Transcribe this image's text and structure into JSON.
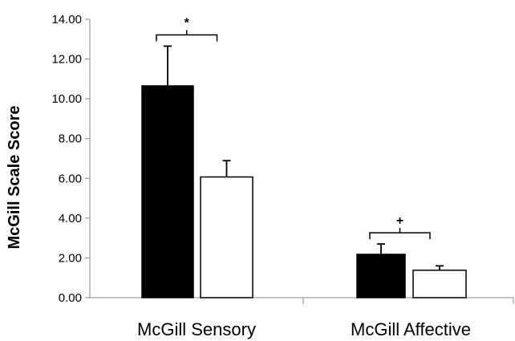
{
  "chart_data": {
    "type": "bar",
    "title": "",
    "ylabel": "McGill Scale Score",
    "xlabel": "",
    "ylim": [
      0,
      14
    ],
    "ytick_step": 2,
    "ytick_labels": [
      "0.00",
      "2.00",
      "4.00",
      "6.00",
      "8.00",
      "10.00",
      "12.00",
      "14.00"
    ],
    "categories": [
      "McGill Sensory",
      "McGill Affective"
    ],
    "series": [
      {
        "color": "#000000",
        "values": [
          10.65,
          2.18
        ],
        "errors": [
          2.0,
          0.52
        ]
      },
      {
        "color": "#ffffff",
        "values": [
          6.07,
          1.38
        ],
        "errors": [
          0.82,
          0.22
        ]
      }
    ],
    "significance": [
      "*",
      "+"
    ],
    "grid": false,
    "legend": "none"
  }
}
